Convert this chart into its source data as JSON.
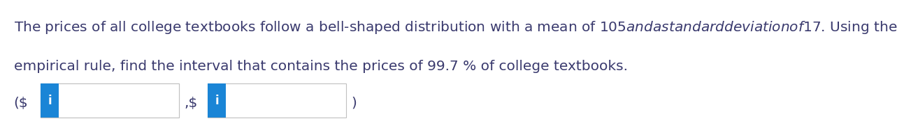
{
  "text_line1": "The prices of all college textbooks follow a bell-shaped distribution with a mean of $105 and a standard deviation of $17. Using the",
  "text_line2": "empirical rule, find the interval that contains the prices of 99.7 % of college textbooks.",
  "icon_label": "i",
  "text_color": "#3a3a6e",
  "icon_bg_color": "#1a85d6",
  "icon_text_color": "#ffffff",
  "box_border_color": "#c0c0c0",
  "box_fill_color": "#ffffff",
  "background_color": "#ffffff",
  "main_fontsize": 14.5,
  "icon_fontsize": 12,
  "label_fontsize": 14.5
}
